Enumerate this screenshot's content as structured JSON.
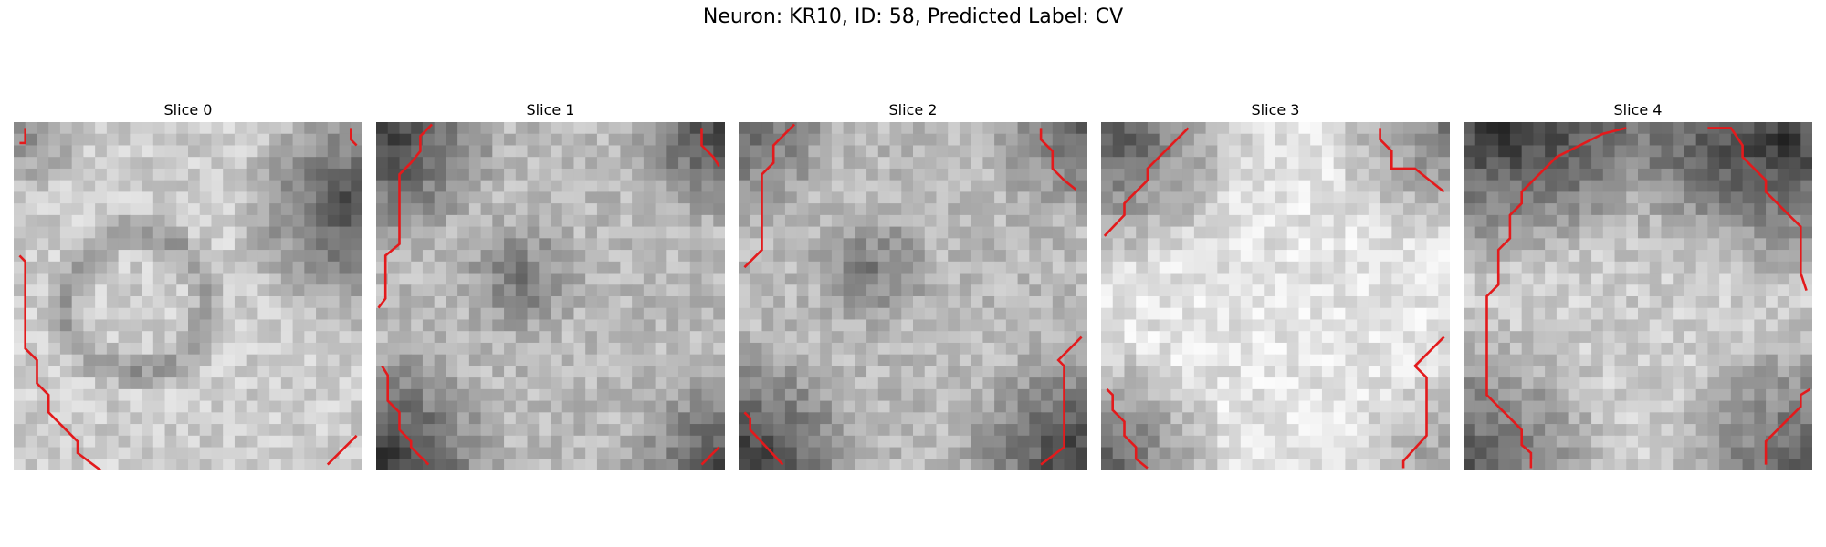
{
  "title": "Neuron: KR10, ID: 58, Predicted Label: CV",
  "slices": [
    {
      "label": "Slice 0"
    },
    {
      "label": "Slice 1"
    },
    {
      "label": "Slice 2"
    },
    {
      "label": "Slice 3"
    },
    {
      "label": "Slice 4"
    }
  ],
  "colors": {
    "contour": "#e31a1c",
    "background": "#ffffff"
  }
}
